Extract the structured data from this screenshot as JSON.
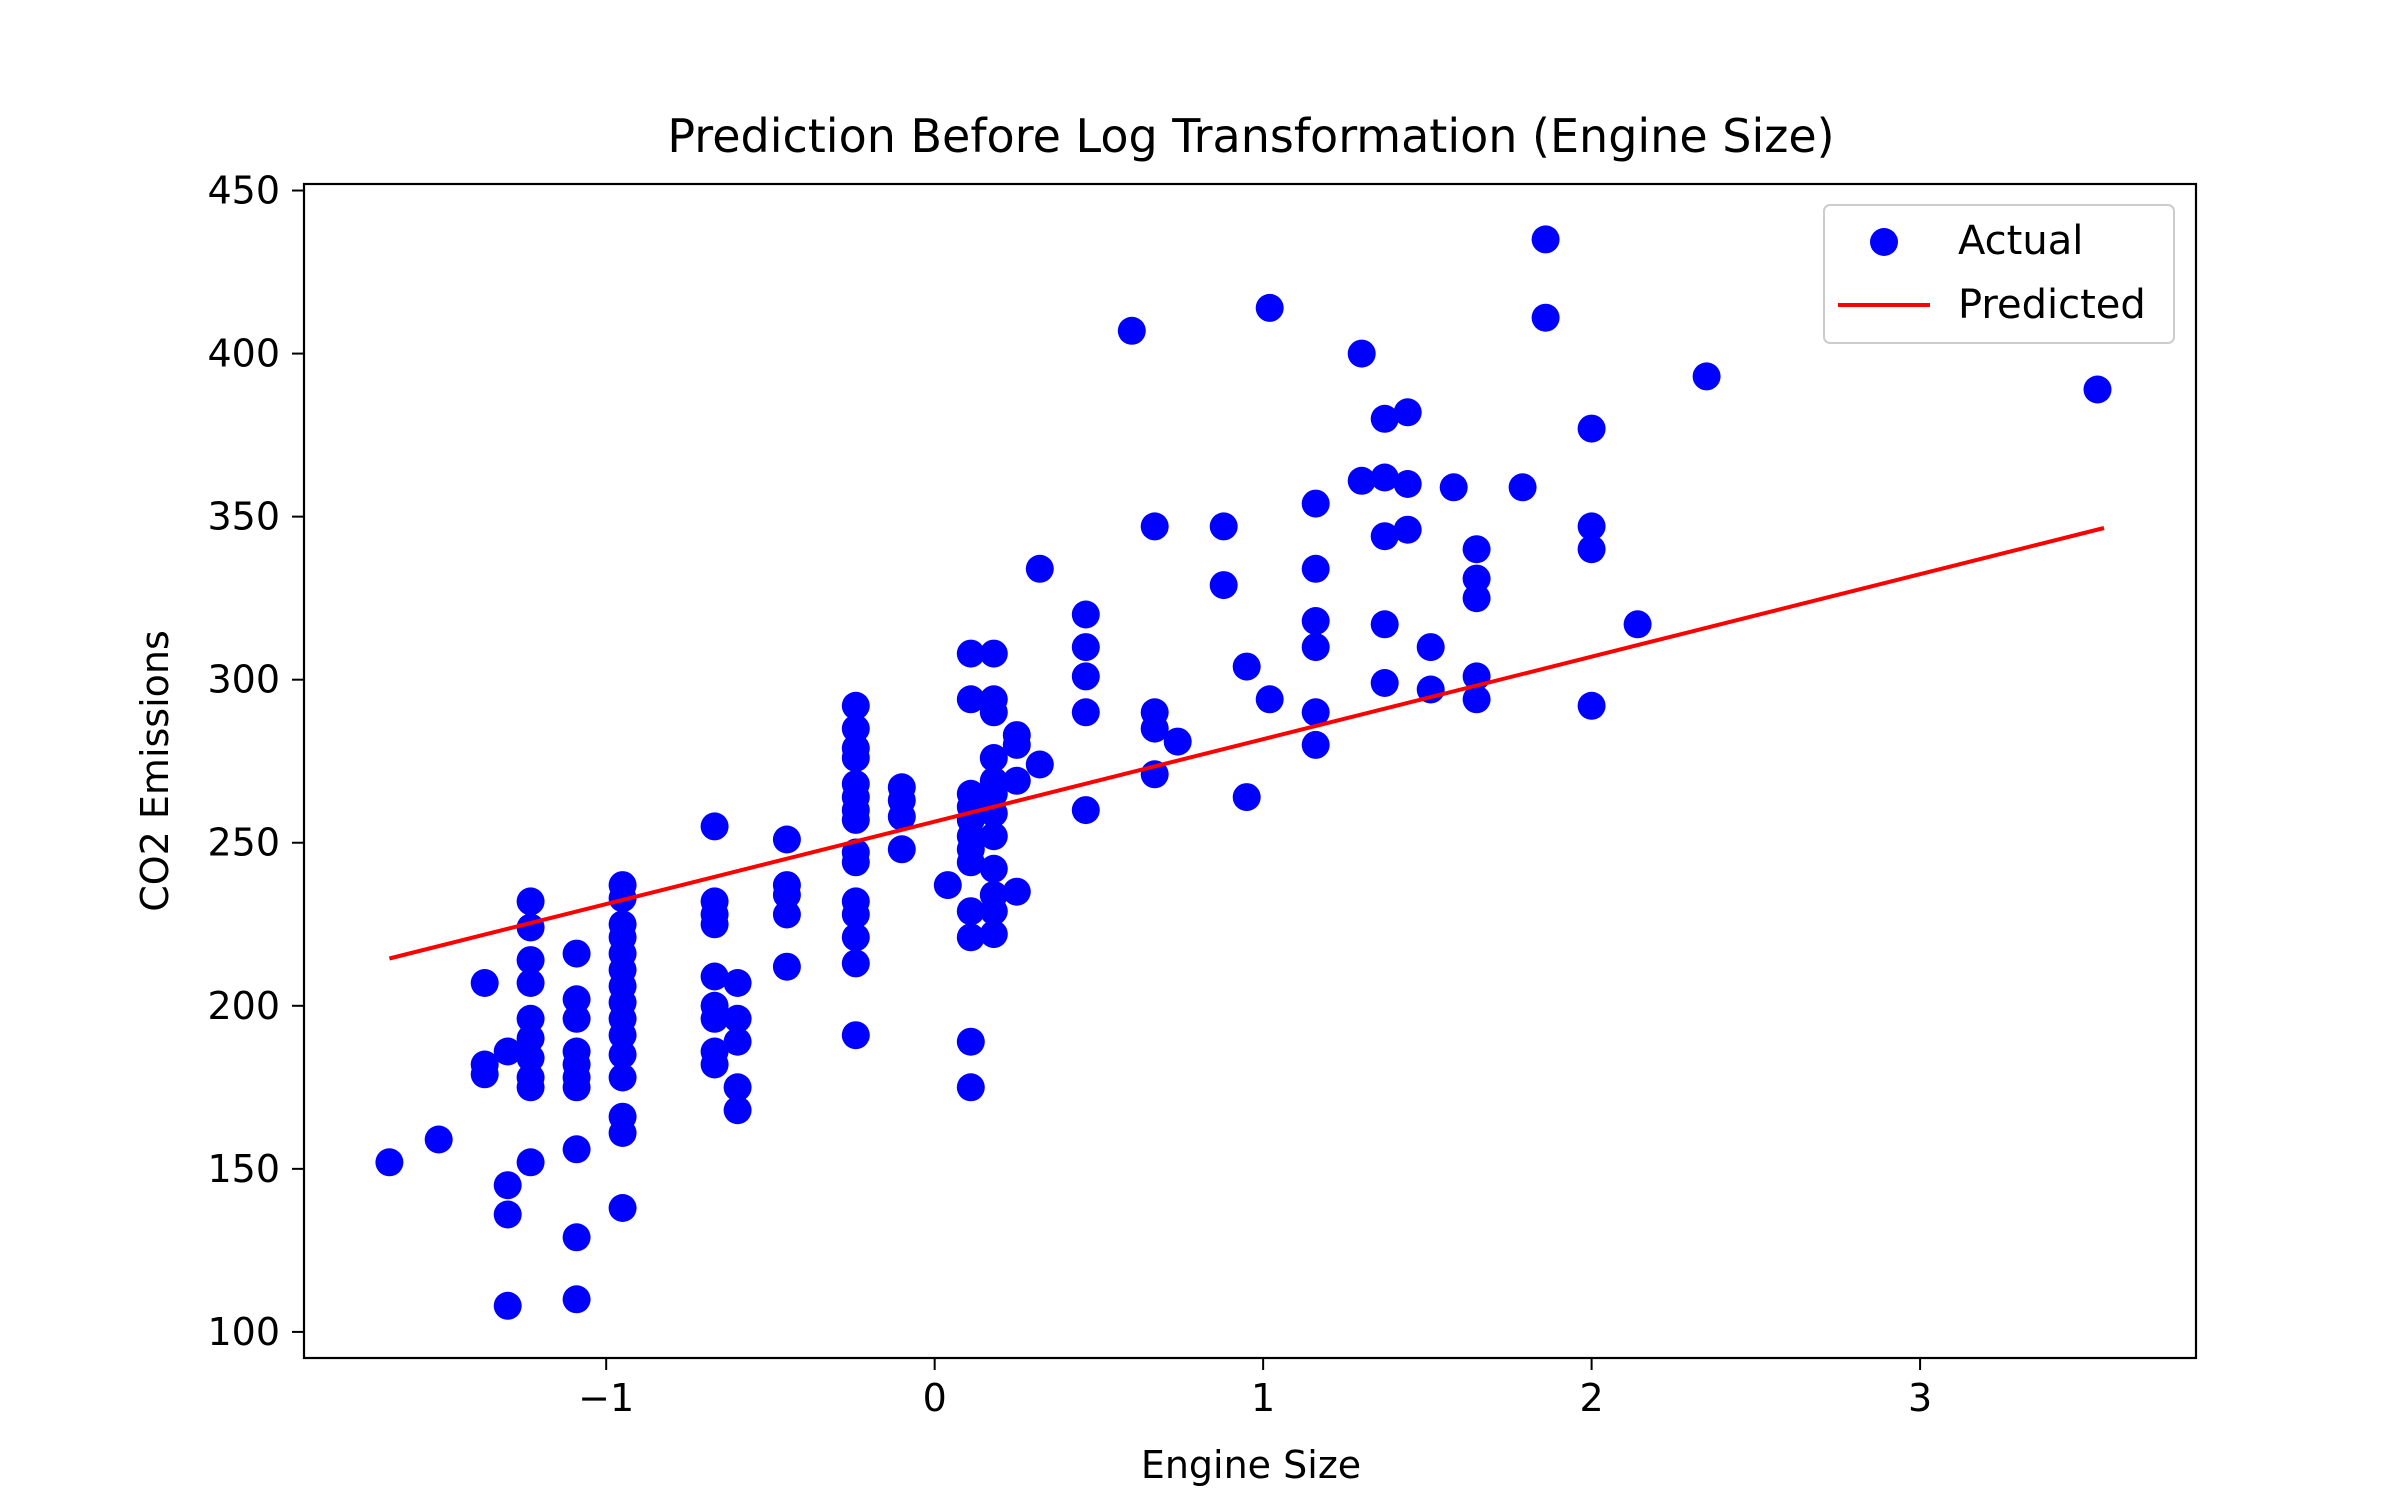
{
  "chart_data": {
    "type": "scatter",
    "title": "Prediction Before Log Transformation (Engine Size)",
    "xlabel": "Engine Size",
    "ylabel": "CO2 Emissions",
    "xlim": [
      -1.92,
      3.84
    ],
    "ylim": [
      92,
      452
    ],
    "xticks": [
      -1,
      0,
      1,
      2,
      3
    ],
    "xtick_labels": [
      "−1",
      "0",
      "1",
      "2",
      "3"
    ],
    "yticks": [
      100,
      150,
      200,
      250,
      300,
      350,
      400,
      450
    ],
    "ytick_labels": [
      "100",
      "150",
      "200",
      "250",
      "300",
      "350",
      "400",
      "450"
    ],
    "grid": false,
    "legend": {
      "placement": "top-right",
      "entries": [
        "Actual",
        "Predicted"
      ]
    },
    "colors": {
      "actual": "#0000ff",
      "predicted": "#ff0000"
    },
    "series": [
      {
        "name": "Actual",
        "type": "scatter",
        "points": [
          [
            -1.66,
            152
          ],
          [
            -1.51,
            159
          ],
          [
            -1.37,
            207
          ],
          [
            -1.37,
            182
          ],
          [
            -1.37,
            179
          ],
          [
            -1.3,
            186
          ],
          [
            -1.3,
            145
          ],
          [
            -1.3,
            136
          ],
          [
            -1.3,
            108
          ],
          [
            -1.23,
            232
          ],
          [
            -1.23,
            224
          ],
          [
            -1.23,
            214
          ],
          [
            -1.23,
            207
          ],
          [
            -1.23,
            196
          ],
          [
            -1.23,
            190
          ],
          [
            -1.23,
            184
          ],
          [
            -1.23,
            178
          ],
          [
            -1.23,
            175
          ],
          [
            -1.23,
            152
          ],
          [
            -1.09,
            216
          ],
          [
            -1.09,
            202
          ],
          [
            -1.09,
            196
          ],
          [
            -1.09,
            186
          ],
          [
            -1.09,
            182
          ],
          [
            -1.09,
            178
          ],
          [
            -1.09,
            175
          ],
          [
            -1.09,
            156
          ],
          [
            -1.09,
            129
          ],
          [
            -1.09,
            110
          ],
          [
            -0.95,
            237
          ],
          [
            -0.95,
            233
          ],
          [
            -0.95,
            225
          ],
          [
            -0.95,
            221
          ],
          [
            -0.95,
            216
          ],
          [
            -0.95,
            211
          ],
          [
            -0.95,
            206
          ],
          [
            -0.95,
            201
          ],
          [
            -0.95,
            196
          ],
          [
            -0.95,
            191
          ],
          [
            -0.95,
            185
          ],
          [
            -0.95,
            178
          ],
          [
            -0.95,
            166
          ],
          [
            -0.95,
            161
          ],
          [
            -0.95,
            138
          ],
          [
            -0.67,
            255
          ],
          [
            -0.67,
            232
          ],
          [
            -0.67,
            228
          ],
          [
            -0.67,
            225
          ],
          [
            -0.67,
            209
          ],
          [
            -0.67,
            200
          ],
          [
            -0.67,
            196
          ],
          [
            -0.67,
            186
          ],
          [
            -0.67,
            182
          ],
          [
            -0.6,
            207
          ],
          [
            -0.6,
            196
          ],
          [
            -0.6,
            189
          ],
          [
            -0.6,
            175
          ],
          [
            -0.6,
            168
          ],
          [
            -0.45,
            251
          ],
          [
            -0.45,
            237
          ],
          [
            -0.45,
            234
          ],
          [
            -0.45,
            228
          ],
          [
            -0.45,
            212
          ],
          [
            -0.24,
            292
          ],
          [
            -0.24,
            285
          ],
          [
            -0.24,
            279
          ],
          [
            -0.24,
            276
          ],
          [
            -0.24,
            268
          ],
          [
            -0.24,
            264
          ],
          [
            -0.24,
            260
          ],
          [
            -0.24,
            257
          ],
          [
            -0.24,
            247
          ],
          [
            -0.24,
            244
          ],
          [
            -0.24,
            232
          ],
          [
            -0.24,
            228
          ],
          [
            -0.24,
            221
          ],
          [
            -0.24,
            213
          ],
          [
            -0.24,
            191
          ],
          [
            -0.1,
            267
          ],
          [
            -0.1,
            263
          ],
          [
            -0.1,
            258
          ],
          [
            -0.1,
            248
          ],
          [
            0.04,
            237
          ],
          [
            0.11,
            308
          ],
          [
            0.11,
            294
          ],
          [
            0.11,
            265
          ],
          [
            0.11,
            261
          ],
          [
            0.11,
            257
          ],
          [
            0.11,
            252
          ],
          [
            0.11,
            248
          ],
          [
            0.11,
            244
          ],
          [
            0.11,
            229
          ],
          [
            0.11,
            221
          ],
          [
            0.11,
            189
          ],
          [
            0.11,
            175
          ],
          [
            0.18,
            308
          ],
          [
            0.18,
            294
          ],
          [
            0.18,
            290
          ],
          [
            0.18,
            276
          ],
          [
            0.18,
            269
          ],
          [
            0.18,
            265
          ],
          [
            0.18,
            259
          ],
          [
            0.18,
            252
          ],
          [
            0.18,
            242
          ],
          [
            0.18,
            234
          ],
          [
            0.18,
            229
          ],
          [
            0.18,
            222
          ],
          [
            0.25,
            283
          ],
          [
            0.25,
            280
          ],
          [
            0.25,
            269
          ],
          [
            0.25,
            235
          ],
          [
            0.32,
            334
          ],
          [
            0.32,
            274
          ],
          [
            0.46,
            320
          ],
          [
            0.46,
            310
          ],
          [
            0.46,
            301
          ],
          [
            0.46,
            290
          ],
          [
            0.46,
            260
          ],
          [
            0.6,
            407
          ],
          [
            0.67,
            347
          ],
          [
            0.67,
            290
          ],
          [
            0.67,
            285
          ],
          [
            0.67,
            271
          ],
          [
            0.74,
            281
          ],
          [
            0.88,
            347
          ],
          [
            0.88,
            329
          ],
          [
            0.95,
            304
          ],
          [
            0.95,
            264
          ],
          [
            1.02,
            414
          ],
          [
            1.02,
            294
          ],
          [
            1.16,
            354
          ],
          [
            1.16,
            334
          ],
          [
            1.16,
            318
          ],
          [
            1.16,
            310
          ],
          [
            1.16,
            290
          ],
          [
            1.16,
            280
          ],
          [
            1.3,
            400
          ],
          [
            1.3,
            361
          ],
          [
            1.37,
            380
          ],
          [
            1.37,
            362
          ],
          [
            1.37,
            344
          ],
          [
            1.37,
            317
          ],
          [
            1.37,
            299
          ],
          [
            1.44,
            382
          ],
          [
            1.44,
            360
          ],
          [
            1.44,
            346
          ],
          [
            1.51,
            310
          ],
          [
            1.51,
            297
          ],
          [
            1.58,
            359
          ],
          [
            1.65,
            340
          ],
          [
            1.65,
            331
          ],
          [
            1.65,
            325
          ],
          [
            1.65,
            301
          ],
          [
            1.65,
            294
          ],
          [
            1.79,
            359
          ],
          [
            1.86,
            435
          ],
          [
            1.86,
            411
          ],
          [
            2.0,
            377
          ],
          [
            2.0,
            347
          ],
          [
            2.0,
            340
          ],
          [
            2.0,
            292
          ],
          [
            2.14,
            317
          ],
          [
            2.35,
            393
          ],
          [
            3.54,
            389
          ]
        ]
      },
      {
        "name": "Predicted",
        "type": "line",
        "points": [
          [
            -1.66,
            214.5
          ],
          [
            3.56,
            346.5
          ]
        ]
      }
    ]
  }
}
